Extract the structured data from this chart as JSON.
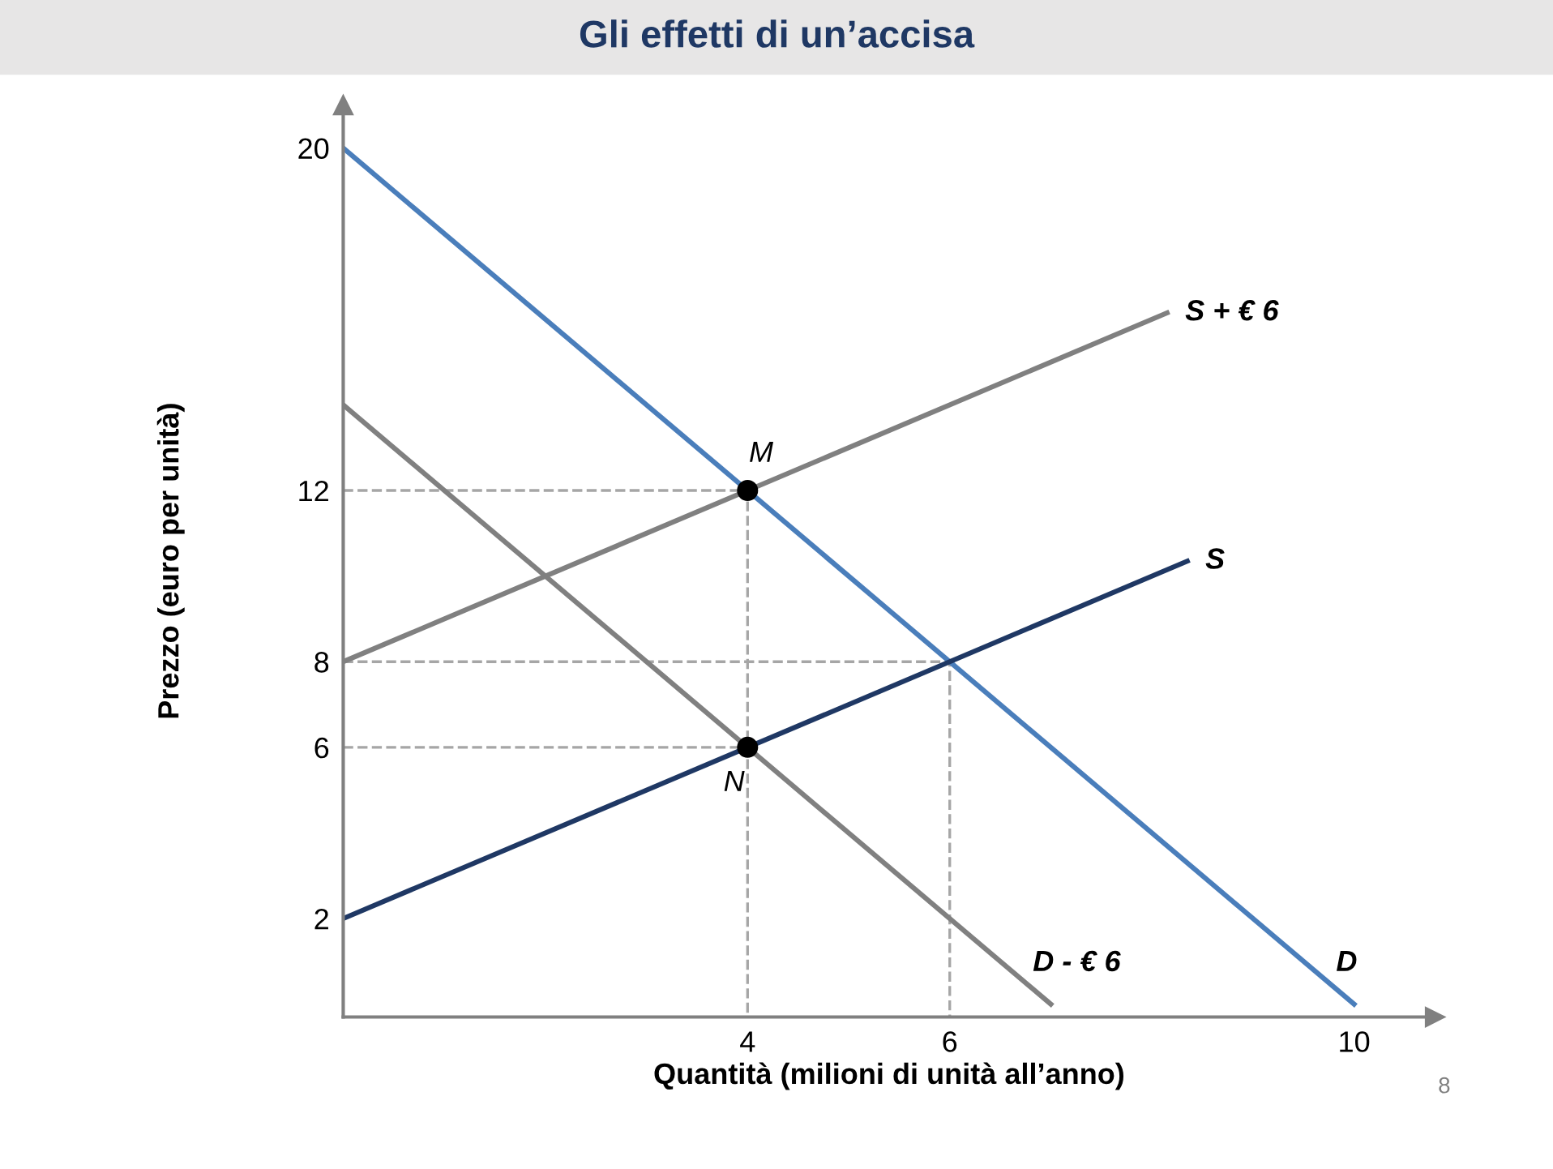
{
  "chart_data": {
    "type": "line",
    "title": "Gli effetti di un’accisa",
    "xlabel": "Quantità (milioni di unità all’anno)",
    "ylabel": "Prezzo (euro per unità)",
    "xlim": [
      0,
      10.8
    ],
    "ylim": [
      -0.3,
      21
    ],
    "xticks": [
      4,
      6,
      10
    ],
    "yticks": [
      2,
      6,
      8,
      12,
      20
    ],
    "grid": false,
    "marker": "none",
    "line_style": "solid",
    "series": [
      {
        "name": "D",
        "color": "#4a7ebb",
        "x": [
          0,
          10
        ],
        "values": [
          20,
          0
        ]
      },
      {
        "name": "S",
        "color": "#1f3864",
        "x": [
          0,
          8.35
        ],
        "values": [
          2,
          10.35
        ]
      },
      {
        "name": "S + € 6",
        "color": "#808080",
        "x": [
          0,
          8.15
        ],
        "values": [
          8,
          16.15
        ]
      },
      {
        "name": "D - € 6",
        "color": "#808080",
        "x": [
          0,
          7
        ],
        "values": [
          14,
          0
        ]
      },
      {
        "color": "#a6a6a6",
        "line_style": "dashed",
        "x": [
          0,
          4,
          4
        ],
        "values": [
          12,
          12,
          -0.3
        ]
      },
      {
        "color": "#a6a6a6",
        "line_style": "dashed",
        "x": [
          0,
          6,
          6
        ],
        "values": [
          8,
          8,
          -0.3
        ]
      },
      {
        "color": "#a6a6a6",
        "line_style": "dashed",
        "x": [
          0,
          4
        ],
        "values": [
          6,
          6
        ]
      },
      {
        "type": "scatter",
        "marker": "circle",
        "color": "#000000",
        "x": [
          4,
          4
        ],
        "values": [
          12,
          6
        ]
      }
    ],
    "annotations": [
      {
        "text": "M",
        "x": 4,
        "y": 12
      },
      {
        "text": "N",
        "x": 4,
        "y": 6
      },
      "8"
    ]
  }
}
